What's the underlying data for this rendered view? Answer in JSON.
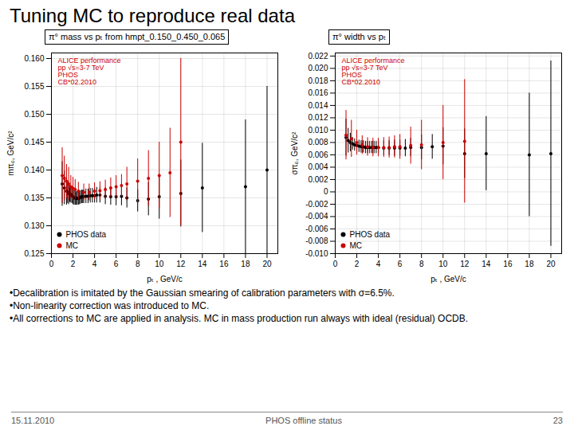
{
  "title": "Tuning MC to reproduce real data",
  "annotations": [
    "•Decalibration is imitated by the Gaussian smearing of calibration parameters with σ=6.5%.",
    "•Non-linearity correction was introduced to MC.",
    "•All corrections to MC are applied in analysis. MC in mass production run always with ideal (residual) OCDB."
  ],
  "footer": [
    "15.11.2010",
    "PHOS offline status",
    "23"
  ],
  "chart_data": [
    {
      "type": "scatter",
      "title": "π° mass vs pₜ from hmpt_0.150_0.450_0.065",
      "x_label": "pₜ , GeV/c",
      "y_label": "mπ₀, GeV/c²",
      "xlim": [
        0,
        21
      ],
      "xticks": [
        0,
        2,
        4,
        6,
        8,
        10,
        12,
        14,
        16,
        18,
        20
      ],
      "ylim": [
        0.125,
        0.161
      ],
      "yticks": [
        0.125,
        {
          "value": 0.13,
          "label": "0.130"
        },
        0.135,
        {
          "value": 0.14,
          "label": "0.140"
        },
        0.145,
        {
          "value": 0.15,
          "label": "0.150"
        },
        0.155,
        {
          "value": 0.16,
          "label": "0.160"
        }
      ],
      "grid": true,
      "legend": "lower left",
      "annotations": [
        {
          "text": "ALICE performance\npp √s=3-7 TeV\nPHOS\nCB*02.2010",
          "color": "#cc0000"
        }
      ],
      "series": [
        {
          "name": "PHOS data",
          "color": "#000000",
          "x": [
            1.0,
            1.2,
            1.4,
            1.5,
            1.6,
            1.7,
            1.8,
            1.9,
            2.0,
            2.1,
            2.2,
            2.3,
            2.4,
            2.5,
            2.6,
            2.7,
            2.8,
            2.9,
            3.0,
            3.2,
            3.4,
            3.6,
            3.8,
            4.0,
            4.2,
            4.5,
            5.0,
            5.5,
            6.0,
            6.5,
            7.0,
            8.0,
            9.0,
            10.0,
            12.0,
            14.0,
            18.0,
            20.0
          ],
          "values": [
            0.1375,
            0.1368,
            0.1362,
            0.136,
            0.1358,
            0.1357,
            0.1356,
            0.1355,
            0.1352,
            0.135,
            0.135,
            0.1349,
            0.1349,
            0.1349,
            0.135,
            0.1351,
            0.1352,
            0.1352,
            0.1352,
            0.1353,
            0.1353,
            0.1354,
            0.1354,
            0.1354,
            0.1355,
            0.1355,
            0.1353,
            0.1352,
            0.1352,
            0.1353,
            0.135,
            0.1345,
            0.1348,
            0.1352,
            0.1358,
            0.1368,
            0.137,
            0.14
          ],
          "errors": [
            0.004,
            0.003,
            0.0025,
            0.002,
            0.002,
            0.0015,
            0.0015,
            0.0015,
            0.0014,
            0.0013,
            0.0013,
            0.0012,
            0.0012,
            0.0012,
            0.0012,
            0.0012,
            0.0012,
            0.0012,
            0.0012,
            0.0013,
            0.0013,
            0.0013,
            0.0013,
            0.0013,
            0.0014,
            0.0014,
            0.0015,
            0.0015,
            0.0016,
            0.0017,
            0.0018,
            0.002,
            0.003,
            0.004,
            0.006,
            0.008,
            0.012,
            0.015
          ]
        },
        {
          "name": "MC",
          "color": "#cc0000",
          "x": [
            1.0,
            1.2,
            1.4,
            1.6,
            1.8,
            2.0,
            2.2,
            2.5,
            3.0,
            3.5,
            4.0,
            4.5,
            5.0,
            5.5,
            6.0,
            6.5,
            7.0,
            8.0,
            9.0,
            10.0,
            11.0,
            12.0
          ],
          "values": [
            0.139,
            0.1385,
            0.138,
            0.1375,
            0.137,
            0.1367,
            0.1365,
            0.1362,
            0.136,
            0.136,
            0.1362,
            0.1363,
            0.1365,
            0.1368,
            0.137,
            0.1372,
            0.1375,
            0.138,
            0.1385,
            0.139,
            0.1395,
            0.145
          ],
          "errors": [
            0.005,
            0.004,
            0.003,
            0.003,
            0.002,
            0.002,
            0.0018,
            0.0016,
            0.0015,
            0.0015,
            0.0015,
            0.0016,
            0.0017,
            0.0018,
            0.002,
            0.002,
            0.003,
            0.004,
            0.005,
            0.006,
            0.008,
            0.015
          ]
        }
      ]
    },
    {
      "type": "scatter",
      "title": "π° width vs pₜ",
      "x_label": "pₜ , GeV/c",
      "y_label": "σπ₀, GeV/c²",
      "xlim": [
        0,
        21
      ],
      "xticks": [
        0,
        2,
        4,
        6,
        8,
        10,
        12,
        14,
        16,
        18,
        20
      ],
      "ylim": [
        -0.01,
        0.0225
      ],
      "yticks": [
        {
          "value": -0.01,
          "label": "-0.010"
        },
        -0.008,
        -0.006,
        -0.004,
        -0.002,
        0,
        0.002,
        0.004,
        0.006,
        0.008,
        {
          "value": 0.01,
          "label": "0.010"
        },
        0.012,
        0.014,
        0.016,
        0.018,
        {
          "value": 0.02,
          "label": "0.020"
        },
        0.022
      ],
      "grid": true,
      "legend": "lower left",
      "annotations": [
        {
          "text": "ALICE performance\npp √s=3-7 TeV\nPHOS\nCB*02.2010",
          "color": "#cc0000"
        }
      ],
      "series": [
        {
          "name": "PHOS data",
          "color": "#000000",
          "x": [
            1.0,
            1.2,
            1.4,
            1.6,
            1.8,
            2.0,
            2.2,
            2.4,
            2.6,
            2.8,
            3.0,
            3.2,
            3.4,
            3.6,
            3.8,
            4.0,
            4.5,
            5.0,
            5.5,
            6.0,
            6.5,
            7.0,
            8.0,
            9.0,
            10.0,
            12.0,
            14.0,
            18.0,
            20.0
          ],
          "values": [
            0.0088,
            0.0083,
            0.008,
            0.0078,
            0.0076,
            0.0075,
            0.0074,
            0.0073,
            0.0073,
            0.0072,
            0.0072,
            0.0072,
            0.0072,
            0.0072,
            0.0072,
            0.0072,
            0.0071,
            0.0071,
            0.0071,
            0.0071,
            0.0071,
            0.0072,
            0.0072,
            0.0073,
            0.0074,
            0.0062,
            0.0062,
            0.006,
            0.0062
          ],
          "errors": [
            0.003,
            0.002,
            0.0015,
            0.001,
            0.001,
            0.001,
            0.001,
            0.001,
            0.001,
            0.001,
            0.001,
            0.001,
            0.001,
            0.001,
            0.001,
            0.001,
            0.0012,
            0.0012,
            0.0013,
            0.0013,
            0.0014,
            0.0015,
            0.002,
            0.002,
            0.003,
            0.004,
            0.006,
            0.01,
            0.015
          ]
        },
        {
          "name": "MC",
          "color": "#cc0000",
          "x": [
            1.0,
            1.5,
            2.0,
            2.5,
            3.0,
            3.5,
            4.0,
            4.5,
            5.0,
            5.5,
            6.0,
            7.0,
            8.0,
            10.0,
            12.0
          ],
          "values": [
            0.0092,
            0.0086,
            0.008,
            0.0076,
            0.0073,
            0.0072,
            0.0072,
            0.0072,
            0.0072,
            0.0073,
            0.0073,
            0.0075,
            0.0076,
            0.008,
            0.0082
          ],
          "errors": [
            0.004,
            0.003,
            0.002,
            0.0015,
            0.0015,
            0.0015,
            0.0015,
            0.0016,
            0.0017,
            0.0018,
            0.002,
            0.003,
            0.004,
            0.006,
            0.01
          ]
        }
      ]
    }
  ]
}
